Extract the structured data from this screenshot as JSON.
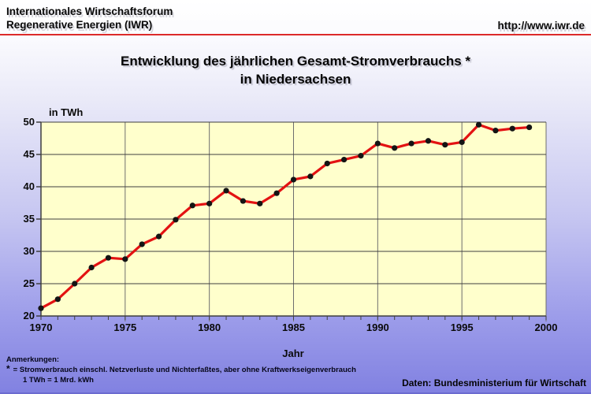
{
  "header": {
    "org_line1": "Internationales Wirtschaftsforum",
    "org_line2": "Regenerative Energien (IWR)",
    "url": "http://www.iwr.de"
  },
  "title": {
    "line1": "Entwicklung des jährlichen Gesamt-Stromverbrauchs *",
    "line2": "in Niedersachsen"
  },
  "chart_data": {
    "type": "line",
    "title": "Entwicklung des jährlichen Gesamt-Stromverbrauchs in Niedersachsen",
    "unit_label": "in TWh",
    "xlabel": "Jahr",
    "ylabel": "in TWh",
    "xlim": [
      1970,
      2000
    ],
    "ylim": [
      20,
      50
    ],
    "y_ticks": [
      20,
      25,
      30,
      35,
      40,
      45,
      50
    ],
    "x_ticks_labeled": [
      1970,
      1975,
      1980,
      1985,
      1990,
      1995,
      2000
    ],
    "grid": true,
    "x": [
      1970,
      1971,
      1972,
      1973,
      1974,
      1975,
      1976,
      1977,
      1978,
      1979,
      1980,
      1981,
      1982,
      1983,
      1984,
      1985,
      1986,
      1987,
      1988,
      1989,
      1990,
      1991,
      1992,
      1993,
      1994,
      1995,
      1996,
      1997,
      1998,
      1999
    ],
    "values": [
      21.2,
      22.6,
      25.0,
      27.5,
      29.0,
      28.8,
      31.1,
      32.3,
      34.9,
      37.1,
      37.4,
      39.4,
      37.8,
      37.4,
      39.0,
      41.1,
      41.6,
      43.6,
      44.2,
      44.8,
      46.7,
      46.0,
      46.7,
      47.1,
      46.5,
      46.9,
      49.6,
      48.7,
      49.0,
      49.2
    ],
    "line_color": "#e31212",
    "marker_color": "#141414",
    "plot_bg": "#ffffcc",
    "grid_color_h": "#3f3f3f",
    "grid_color_v": "#6e6e6e"
  },
  "footer": {
    "annotations_title": "Anmerkungen:",
    "asterisk": "*",
    "note1": "= Stromverbrauch einschl. Netzverluste und Nichterfaßtes, aber ohne Kraftwerkseigenverbrauch",
    "note2": "1 TWh = 1 Mrd. kWh",
    "source": "Daten: Bundesministerium für Wirtschaft"
  }
}
